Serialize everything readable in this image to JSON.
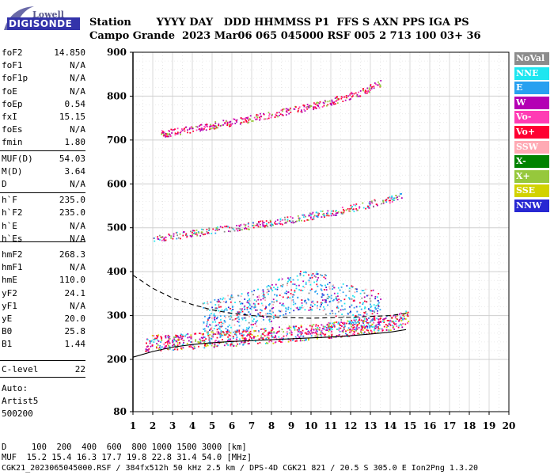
{
  "logo": {
    "top_text": "Lowell",
    "bottom_text": "DIGISONDE",
    "colors": {
      "banner": "#3333aa",
      "swoosh": "#6a6aa8"
    }
  },
  "header": {
    "line1": "Station       YYYY DAY   DDD HHMMSS P1  FFS S AXN PPS IGA PS",
    "line2": "Campo Grande  2023 Mar06 065 045000 RSF 005 2 713 100 03+ 36"
  },
  "params": [
    {
      "name": "foF2",
      "value": "14.850"
    },
    {
      "name": "foF1",
      "value": "N/A"
    },
    {
      "name": "foF1p",
      "value": "N/A"
    },
    {
      "name": "foE",
      "value": "N/A"
    },
    {
      "name": "foEp",
      "value": "0.54"
    },
    {
      "name": "fxI",
      "value": "15.15"
    },
    {
      "name": "foEs",
      "value": "N/A"
    },
    {
      "name": "fmin",
      "value": "1.80"
    },
    {
      "name": "MUF(D)",
      "value": "54.03"
    },
    {
      "name": "M(D)",
      "value": "3.64"
    },
    {
      "name": "D",
      "value": "N/A"
    },
    {
      "name": "h`F",
      "value": "235.0"
    },
    {
      "name": "h`F2",
      "value": "235.0"
    },
    {
      "name": "h`E",
      "value": "N/A"
    },
    {
      "name": "h`Es",
      "value": "N/A"
    },
    {
      "name": "hmF2",
      "value": "268.3"
    },
    {
      "name": "hmF1",
      "value": "N/A"
    },
    {
      "name": "hmE",
      "value": "110.0"
    },
    {
      "name": "yF2",
      "value": "24.1"
    },
    {
      "name": "yF1",
      "value": "N/A"
    },
    {
      "name": "yE",
      "value": "20.0"
    },
    {
      "name": "B0",
      "value": "25.8"
    },
    {
      "name": "B1",
      "value": "1.44"
    },
    {
      "name": "C-level",
      "value": "22"
    }
  ],
  "auto": {
    "label": "Auto:",
    "software": "Artist5",
    "version": "500200"
  },
  "legend": [
    {
      "label": "NoVal",
      "color": "#8c8c8c"
    },
    {
      "label": "NNE",
      "color": "#1ee6f0"
    },
    {
      "label": "E",
      "color": "#28a0f0"
    },
    {
      "label": "W",
      "color": "#b400b4"
    },
    {
      "label": "Vo-",
      "color": "#ff3cb4"
    },
    {
      "label": "Vo+",
      "color": "#ff0032"
    },
    {
      "label": "SSW",
      "color": "#ffaab4"
    },
    {
      "label": "X-",
      "color": "#008200"
    },
    {
      "label": "X+",
      "color": "#96c83c"
    },
    {
      "label": "SSE",
      "color": "#d2d200"
    },
    {
      "label": "NNW",
      "color": "#2828d2"
    }
  ],
  "footer": {
    "line1": "D     100  200  400  600  800 1000 1500 3000 [km]",
    "line2": "MUF  15.2 15.4 16.3 17.7 19.8 22.8 31.4 54.0 [MHz]",
    "line3": "CGK21_2023065045000.RSF / 384fx512h 50 kHz 2.5 km / DPS-4D CGK21 821 / 20.5 S 305.0 E Ion2Png 1.3.20"
  },
  "chart_data": {
    "type": "scatter",
    "title": "",
    "xlabel": "",
    "ylabel": "",
    "xlim": [
      1,
      20
    ],
    "ylim": [
      80,
      900
    ],
    "x_ticks": [
      1,
      2,
      3,
      4,
      5,
      6,
      7,
      8,
      9,
      10,
      11,
      12,
      13,
      14,
      15,
      16,
      17,
      18,
      19,
      20
    ],
    "y_ticks": [
      80,
      200,
      300,
      400,
      500,
      600,
      700,
      800,
      900
    ],
    "grid": true,
    "legend_position": "right",
    "traces": [
      {
        "name": "F trace",
        "x": [
          1.6,
          2.5,
          3.5,
          4.5,
          5.5,
          6.5,
          7.5,
          8.5,
          9.5,
          10.5,
          11.5,
          12.5,
          13.5,
          14.5,
          14.9
        ],
        "y": [
          238,
          240,
          242,
          245,
          248,
          251,
          254,
          258,
          262,
          266,
          270,
          275,
          281,
          290,
          300
        ]
      },
      {
        "name": "2F echo",
        "x": [
          2.0,
          3.0,
          4.0,
          5.0,
          6.0,
          7.0,
          8.0,
          9.0,
          10.0,
          11.0,
          12.0,
          13.0,
          14.0,
          14.6
        ],
        "y": [
          475,
          482,
          488,
          494,
          500,
          506,
          512,
          520,
          528,
          536,
          545,
          555,
          566,
          575
        ]
      },
      {
        "name": "3F echo",
        "x": [
          2.4,
          3.5,
          4.5,
          5.5,
          6.5,
          7.5,
          8.5,
          9.5,
          10.5,
          11.5,
          12.5,
          13.5
        ],
        "y": [
          715,
          722,
          730,
          738,
          746,
          755,
          764,
          773,
          783,
          795,
          810,
          830
        ]
      },
      {
        "name": "scatter band",
        "x": [
          4.5,
          5.5,
          6.5,
          7.5,
          8.5,
          9.5,
          10.5,
          11.5,
          12.5,
          13.5
        ],
        "y": [
          290,
          300,
          310,
          320,
          345,
          360,
          355,
          330,
          320,
          315
        ]
      }
    ],
    "profile_dashed": {
      "x": [
        1.0,
        2.0,
        3.0,
        4.0,
        5.0,
        6.0,
        7.0,
        8.0,
        9.0,
        10.0,
        11.0,
        12.0,
        13.0,
        14.0,
        14.8
      ],
      "y": [
        392,
        362,
        340,
        325,
        313,
        305,
        300,
        297,
        295,
        294,
        295,
        296,
        298,
        300,
        305
      ]
    },
    "profile_solid": {
      "x": [
        1.0,
        2.0,
        3.0,
        4.0,
        5.0,
        6.0,
        7.0,
        8.0,
        9.0,
        10.0,
        11.0,
        12.0,
        13.0,
        14.0,
        14.8
      ],
      "y": [
        205,
        218,
        228,
        234,
        238,
        241,
        243,
        245,
        247,
        249,
        251,
        254,
        258,
        262,
        268
      ]
    }
  }
}
